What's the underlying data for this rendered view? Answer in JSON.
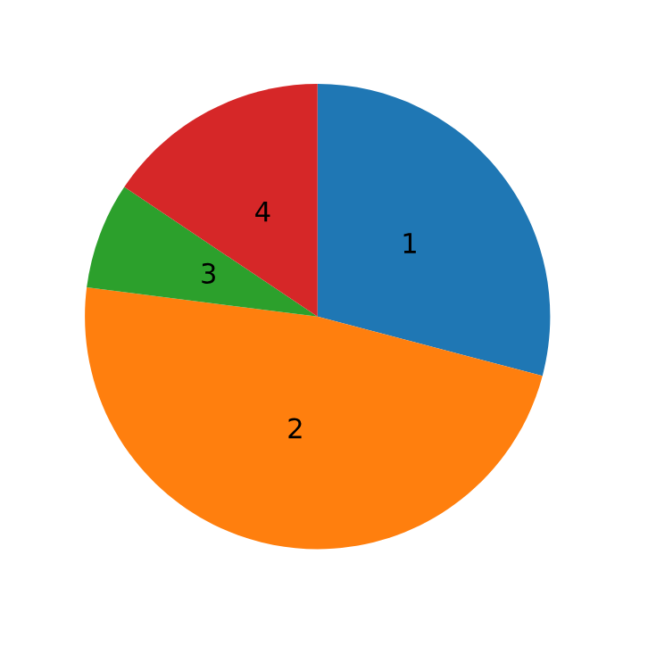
{
  "chart_data": {
    "type": "pie",
    "categories": [
      "1",
      "2",
      "3",
      "4"
    ],
    "values": [
      29.1,
      47.9,
      7.4,
      15.6
    ],
    "colors": [
      "#1f77b4",
      "#ff7f0e",
      "#2ca02c",
      "#d62728"
    ]
  }
}
